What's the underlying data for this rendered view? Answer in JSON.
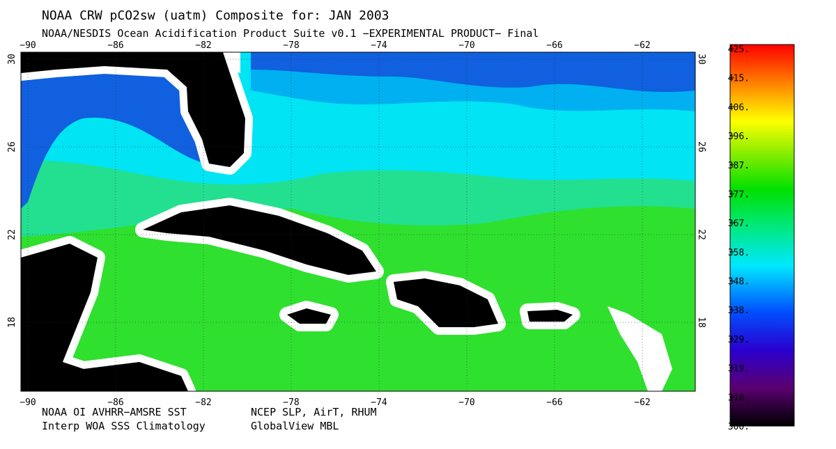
{
  "header": {
    "title": "NOAA CRW pCO2sw (uatm) Composite for: JAN 2003",
    "subtitle": "NOAA/NESDIS Ocean Acidification Product Suite  v0.1 −EXPERIMENTAL PRODUCT−   Final"
  },
  "map": {
    "lon_ticks": [
      "−90",
      "−86",
      "−82",
      "−78",
      "−74",
      "−70",
      "−66",
      "−62"
    ],
    "lat_ticks": [
      "30",
      "26",
      "22",
      "18"
    ]
  },
  "colorbar": {
    "labels": [
      "425.",
      "415.",
      "406.",
      "396.",
      "387.",
      "377.",
      "367.",
      "358.",
      "348.",
      "338.",
      "329.",
      "319.",
      "310.",
      "300."
    ]
  },
  "footer": {
    "sources": [
      "NOAA OI AVHRR−AMSRE SST",
      "NCEP SLP, AirT, RHUM",
      "Interp WOA SSS Climatology",
      "GlobalView MBL"
    ]
  }
}
